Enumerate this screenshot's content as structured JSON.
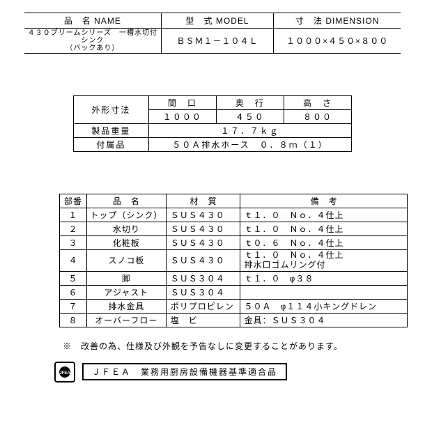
{
  "table1": {
    "headers": {
      "name": "品　名 NAME",
      "model": "型　式 MODEL",
      "dimension": "寸　法 DIMENSION"
    },
    "row": {
      "name_line1": "４３０ブリームシリーズ　一槽水切付シンク",
      "name_line2": "（バックあり）",
      "model": "ＢＳＭ１－１０４Ｌ",
      "dimension": "１０００×４５０×８００"
    }
  },
  "table2": {
    "label_dims": "外形寸法",
    "cols": {
      "width": "間　口",
      "depth": "奥　行",
      "height": "高　さ"
    },
    "vals": {
      "width": "１０００",
      "depth": "４５０",
      "height": "８００"
    },
    "label_weight": "製品重量",
    "weight": "１７．７ｋｇ",
    "label_acc": "付属品",
    "accessory": "５０Ａ排水ホース　０．８ｍ（１）"
  },
  "table3": {
    "headers": {
      "no": "部番",
      "name": "品　名",
      "material": "材　質",
      "remarks": "備　考"
    },
    "rows": [
      {
        "no": "１",
        "name": "トップ（シンク）",
        "material": "ＳＵＳ４３０",
        "remarks": "ｔ１．０　Ｎｏ．４仕上"
      },
      {
        "no": "２",
        "name": "水切り",
        "material": "ＳＵＳ４３０",
        "remarks": "ｔ１．０　Ｎｏ．４仕上"
      },
      {
        "no": "３",
        "name": "化粧板",
        "material": "ＳＵＳ４３０",
        "remarks": "ｔ０．６　Ｎｏ．４仕上"
      },
      {
        "no": "４",
        "name": "スノコ板",
        "material": "ＳＵＳ４３０",
        "remarks": "ｔ１．０　Ｎｏ．４仕上\n排水口ゴムリング付"
      },
      {
        "no": "５",
        "name": "脚",
        "material": "ＳＵＳ３０４",
        "remarks": "ｔ１．０　φ３８"
      },
      {
        "no": "６",
        "name": "アジャスト",
        "material": "ＳＵＳ３０４",
        "remarks": ""
      },
      {
        "no": "７",
        "name": "排水金具",
        "material": "ポリプロピレン",
        "remarks": "５０Ａ　φ１１４小キングドレン"
      },
      {
        "no": "８",
        "name": "オーバーフロー",
        "material": "塩　ビ",
        "remarks": "金具：ＳＵＳ３０４"
      }
    ]
  },
  "note": "※　改善の為、仕様及び外観を予告なしに変更することがあります。",
  "footer": {
    "logo": "JFEA",
    "text": "ＪＦＥＡ　業務用厨房設備機器基準適合品"
  }
}
